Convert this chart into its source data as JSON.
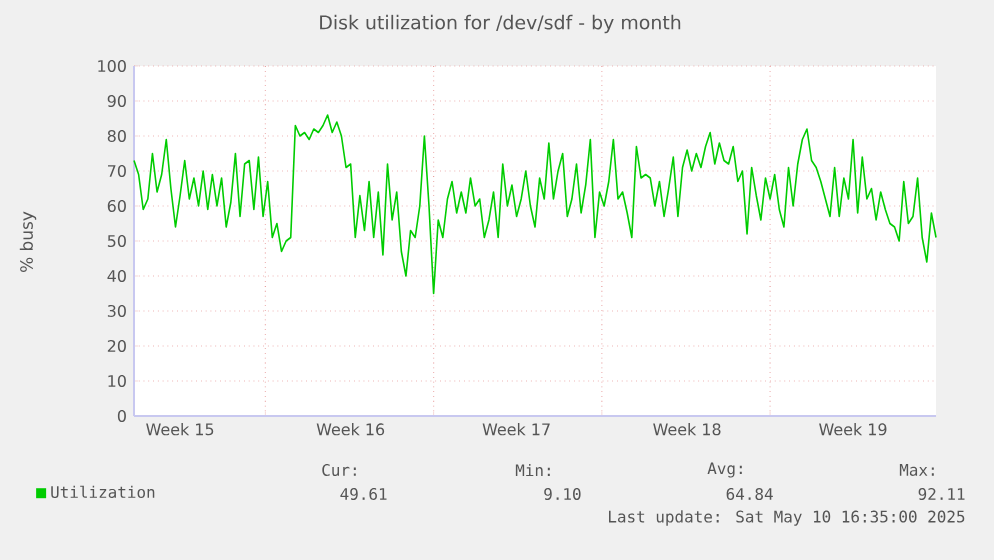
{
  "chart_data": {
    "type": "line",
    "title": "Disk utilization for /dev/sdf - by month",
    "ylabel": "% busy",
    "categories": [
      null,
      null,
      null,
      null,
      null,
      null,
      null,
      null,
      null,
      null,
      "Week 15",
      null,
      null,
      null,
      null,
      null,
      null,
      null,
      null,
      null,
      null,
      null,
      null,
      null,
      null,
      null,
      null,
      null,
      null,
      null,
      null,
      null,
      null,
      null,
      null,
      null,
      null,
      null,
      null,
      null,
      null,
      null,
      null,
      null,
      null,
      null,
      null,
      "Week 16",
      null,
      null,
      null,
      null,
      null,
      null,
      null,
      null,
      null,
      null,
      null,
      null,
      null,
      null,
      null,
      null,
      null,
      null,
      null,
      null,
      null,
      null,
      null,
      null,
      null,
      null,
      null,
      null,
      null,
      null,
      null,
      null,
      null,
      null,
      null,
      "Week 17",
      null,
      null,
      null,
      null,
      null,
      null,
      null,
      null,
      null,
      null,
      null,
      null,
      null,
      null,
      null,
      null,
      null,
      null,
      null,
      null,
      null,
      null,
      null,
      null,
      null,
      null,
      null,
      null,
      null,
      null,
      null,
      null,
      null,
      null,
      null,
      null,
      "Week 18",
      null,
      null,
      null,
      null,
      null,
      null,
      null,
      null,
      null,
      null,
      null,
      null,
      null,
      null,
      null,
      null,
      null,
      null,
      null,
      null,
      null,
      null,
      null,
      null,
      null,
      null,
      null,
      null,
      null,
      null,
      null,
      null,
      null,
      null,
      null,
      "Week 19",
      null,
      null,
      null,
      null,
      null,
      null,
      null,
      null,
      null,
      null,
      null,
      null,
      null,
      null,
      null,
      null,
      null,
      null
    ],
    "ylim": [
      0,
      100
    ],
    "yticks": [
      0,
      10,
      20,
      30,
      40,
      50,
      60,
      70,
      80,
      90,
      100
    ],
    "grid": true,
    "legend": "bottom",
    "annotations": [
      "Cur:",
      "Min:",
      "Avg:",
      "Max:",
      "49.61",
      "9.10",
      "64.84",
      "92.11",
      "Last update: Sat May 10 16:35:00 2025"
    ],
    "series": [
      {
        "name": "Utilization",
        "color": "#00cc00",
        "values": [
          73,
          69,
          59,
          62,
          75,
          64,
          69,
          79,
          65,
          54,
          63,
          73,
          62,
          68,
          60,
          70,
          59,
          69,
          60,
          68,
          54,
          61,
          75,
          57,
          72,
          73,
          59,
          74,
          57,
          67,
          51,
          55,
          47,
          50,
          51,
          83,
          80,
          81,
          79,
          82,
          81,
          83,
          86,
          81,
          84,
          80,
          71,
          72,
          51,
          63,
          53,
          67,
          51,
          64,
          46,
          72,
          56,
          64,
          47,
          40,
          53,
          51,
          60,
          80,
          60,
          35,
          56,
          51,
          62,
          67,
          58,
          64,
          58,
          68,
          60,
          62,
          51,
          56,
          64,
          51,
          72,
          60,
          66,
          57,
          62,
          70,
          60,
          54,
          68,
          62,
          78,
          62,
          70,
          75,
          57,
          62,
          72,
          58,
          66,
          79,
          51,
          64,
          60,
          67,
          79,
          62,
          64,
          58,
          51,
          77,
          68,
          69,
          68,
          60,
          67,
          57,
          65,
          74,
          57,
          71,
          76,
          70,
          75,
          71,
          77,
          81,
          72,
          78,
          73,
          72,
          77,
          67,
          70,
          52,
          71,
          63,
          56,
          68,
          62,
          69,
          59,
          54,
          71,
          60,
          72,
          79,
          82,
          73,
          71,
          67,
          62,
          57,
          71,
          57,
          68,
          62,
          79,
          58,
          74,
          62,
          65,
          56,
          64,
          59,
          55,
          54,
          50,
          67,
          55,
          57,
          68,
          51,
          44,
          58,
          51
        ]
      }
    ]
  }
}
